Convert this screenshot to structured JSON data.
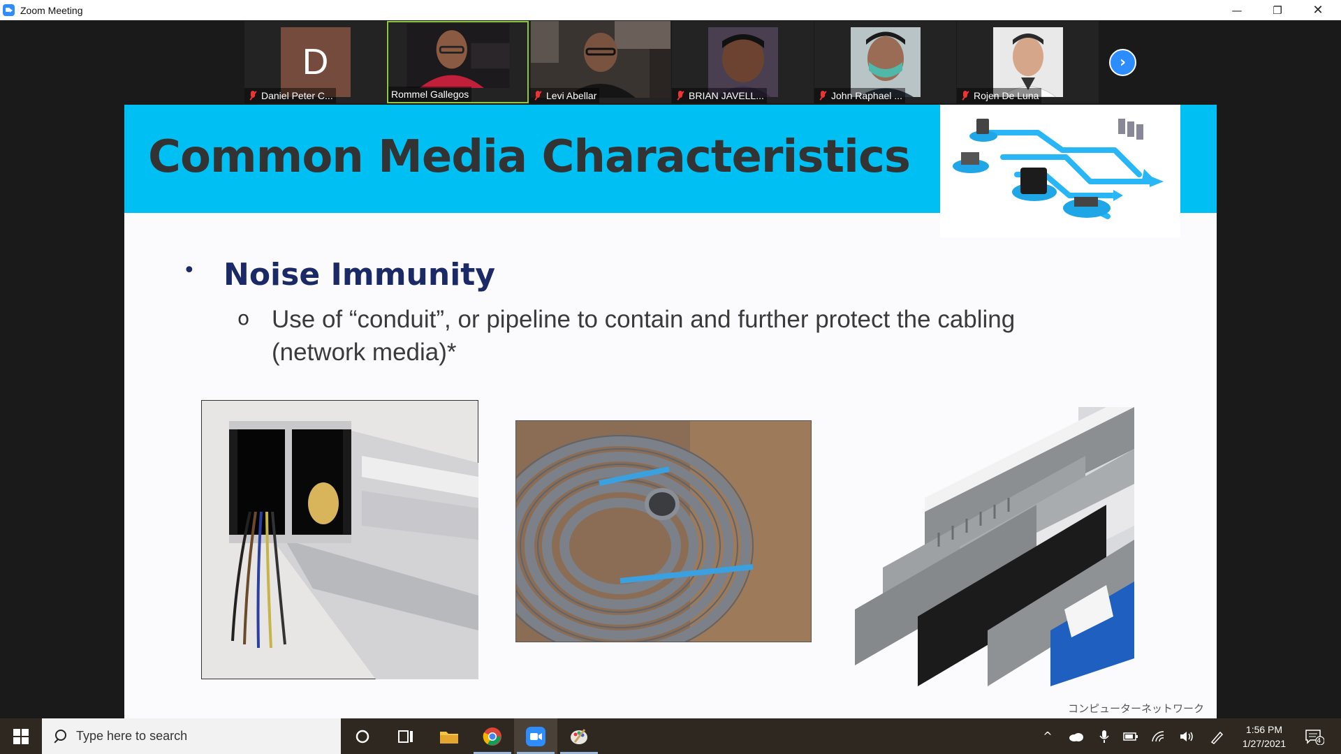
{
  "window": {
    "title": "Zoom Meeting",
    "minimize": "—",
    "restore": "❐",
    "close": "✕"
  },
  "participants": [
    {
      "name": "Daniel Peter C...",
      "avatar_letter": "D",
      "muted": true,
      "video": false
    },
    {
      "name": "Rommel Gallegos",
      "muted": false,
      "video": true,
      "active_speaker": true
    },
    {
      "name": "Levi Abellar",
      "muted": true,
      "video": true
    },
    {
      "name": "BRIAN JAVELL...",
      "muted": true,
      "video": true
    },
    {
      "name": "John Raphael ...",
      "muted": true,
      "video": true
    },
    {
      "name": "Rojen De Luna",
      "muted": true,
      "video": true
    }
  ],
  "next_page_icon": "chevron-right-icon",
  "slide": {
    "title": "Common Media Characteristics",
    "bullet": "Noise Immunity",
    "bullet_marker": "•",
    "sub_marker": "o",
    "sub_text": "Use of “conduit”, or pipeline to contain and further protect the cabling (network media)*",
    "footer": "コンピューターネットワーク",
    "colors": {
      "header_band": "#00bff3",
      "title": "#333333",
      "bullet": "#1b2a66"
    }
  },
  "taskbar": {
    "search_placeholder": "Type here to search",
    "time": "1:56 PM",
    "date": "1/27/2021",
    "notifications_count": "4",
    "apps": [
      "cortana-icon",
      "task-view-icon",
      "file-explorer-icon",
      "chrome-icon",
      "zoom-icon",
      "paint-icon"
    ]
  }
}
